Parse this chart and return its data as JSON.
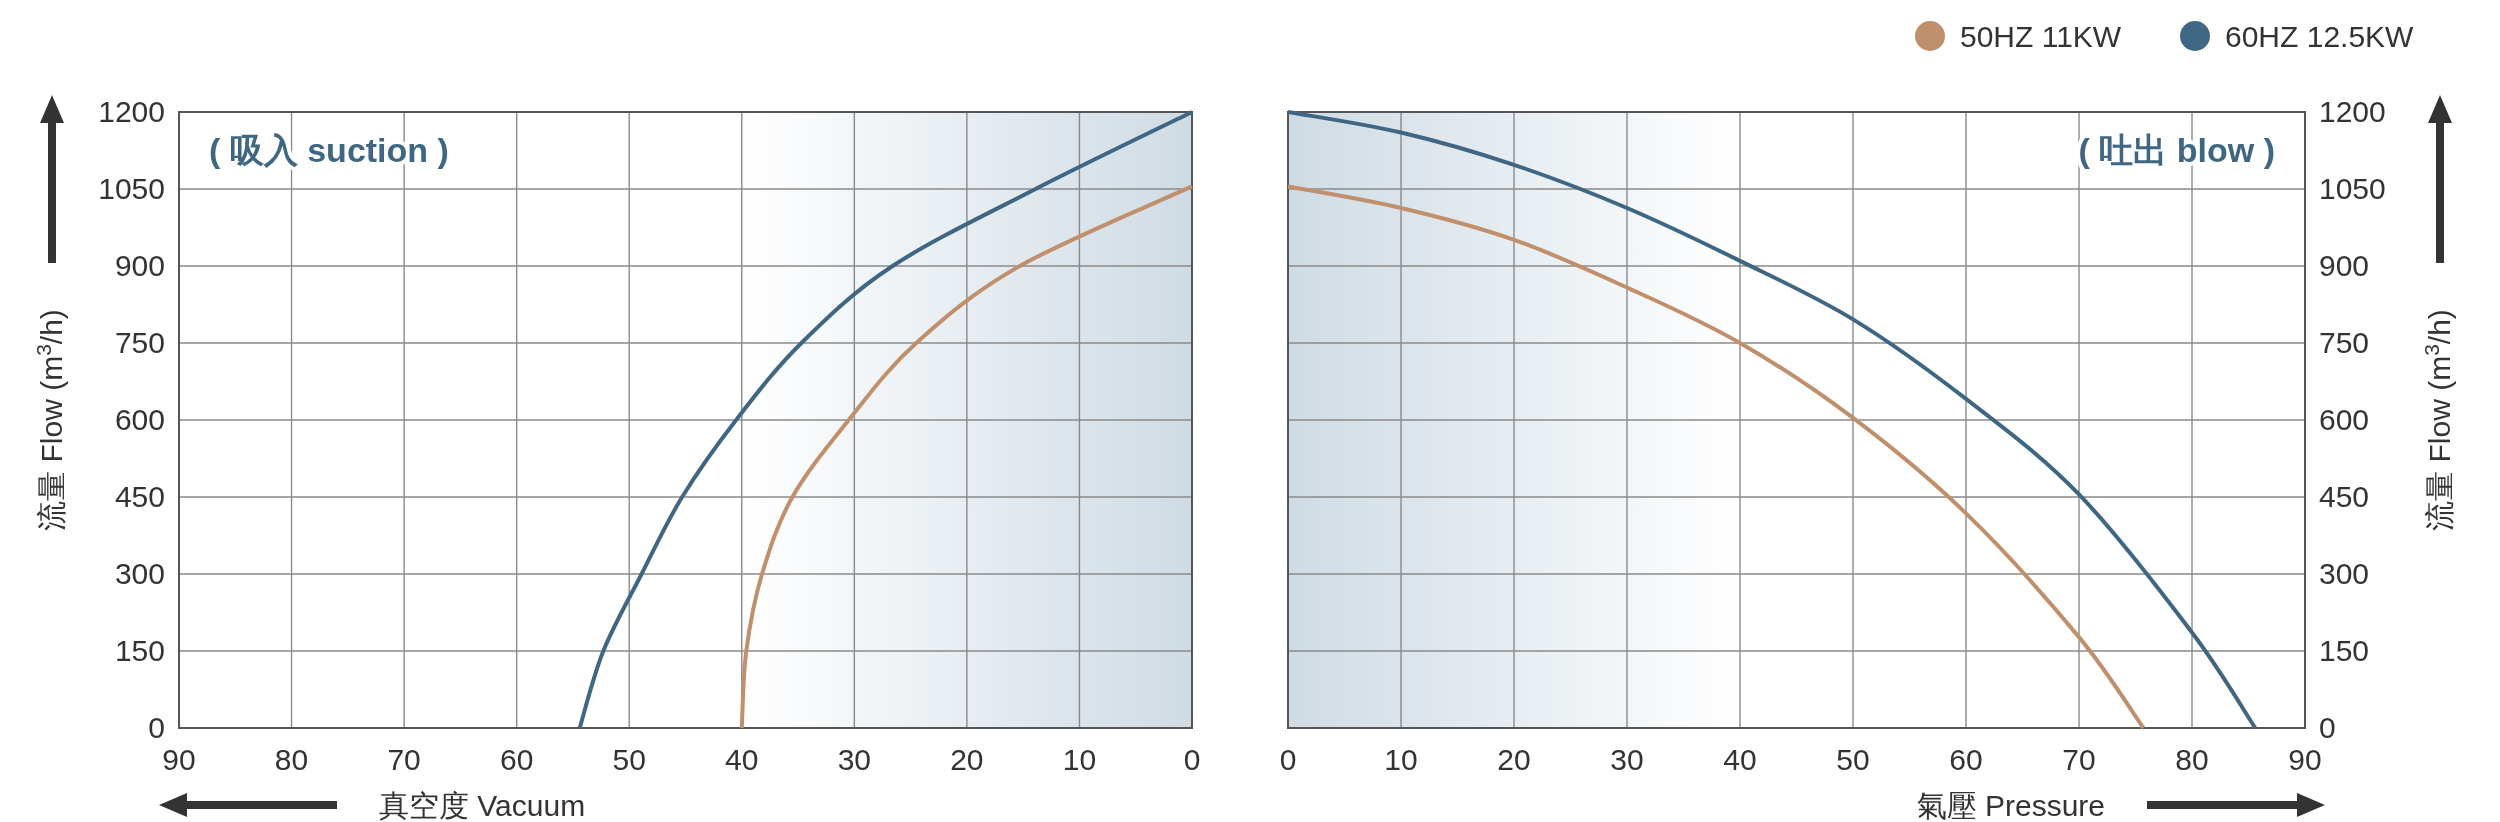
{
  "chart_data": [
    {
      "type": "line",
      "xlabel": "真空度  Vacuum",
      "ylabel": "流量 Flow (m$^{3}$/h)",
      "annotations": [
        "( 吸入 suction )"
      ],
      "xlim": [
        90,
        0
      ],
      "ylim": [
        0,
        1200
      ],
      "xticks": [
        90,
        80,
        70,
        60,
        50,
        40,
        30,
        20,
        10,
        0
      ],
      "yticks": [
        0,
        150,
        300,
        450,
        600,
        750,
        900,
        1050,
        1200
      ],
      "grid": true,
      "marker": "none",
      "bands": [
        {
          "axis": "x",
          "from": 40,
          "to": 0,
          "color": "#cfdbe4"
        }
      ],
      "series": [
        {
          "color": "#c0906c",
          "x": [
            40,
            39.6,
            38.2,
            35.5,
            30.5,
            24.5,
            15.3,
            0
          ],
          "values": [
            0,
            150,
            300,
            450,
            600,
            750,
            900,
            1055
          ]
        },
        {
          "color": "#3f6784",
          "x": [
            54.4,
            52.3,
            48.9,
            45.3,
            40.5,
            34.7,
            26.6,
            13.9,
            0
          ],
          "values": [
            0,
            150,
            300,
            450,
            600,
            750,
            900,
            1050,
            1200
          ]
        }
      ]
    },
    {
      "type": "line",
      "xlabel": "氣壓  Pressure",
      "ylabel": "流量 Flow (m$^{3}$/h)",
      "annotations": [
        "( 吐出 blow )"
      ],
      "xlim": [
        0,
        90
      ],
      "ylim": [
        0,
        1200
      ],
      "xticks": [
        0,
        10,
        20,
        30,
        40,
        50,
        60,
        70,
        80,
        90
      ],
      "yticks": [
        0,
        150,
        300,
        450,
        600,
        750,
        900,
        1050,
        1200
      ],
      "grid": true,
      "marker": "none",
      "legend": "top right",
      "bands": [
        {
          "axis": "x",
          "from": 40,
          "to": 0,
          "color": "#cfdbe4"
        }
      ],
      "series": [
        {
          "name": "50HZ  11KW",
          "color": "#c0906c",
          "x": [
            0,
            10,
            20,
            30,
            40,
            50,
            60,
            70,
            75.7
          ],
          "values": [
            1055,
            1013,
            951,
            858,
            750,
            604,
            418,
            177,
            0
          ]
        },
        {
          "name": "60HZ  12.5KW",
          "color": "#3f6784",
          "x": [
            0,
            10,
            20,
            30,
            40,
            50,
            60,
            70,
            80,
            85.6
          ],
          "values": [
            1200,
            1160,
            1097,
            1013,
            910,
            796,
            641,
            455,
            186,
            0
          ]
        }
      ]
    }
  ]
}
